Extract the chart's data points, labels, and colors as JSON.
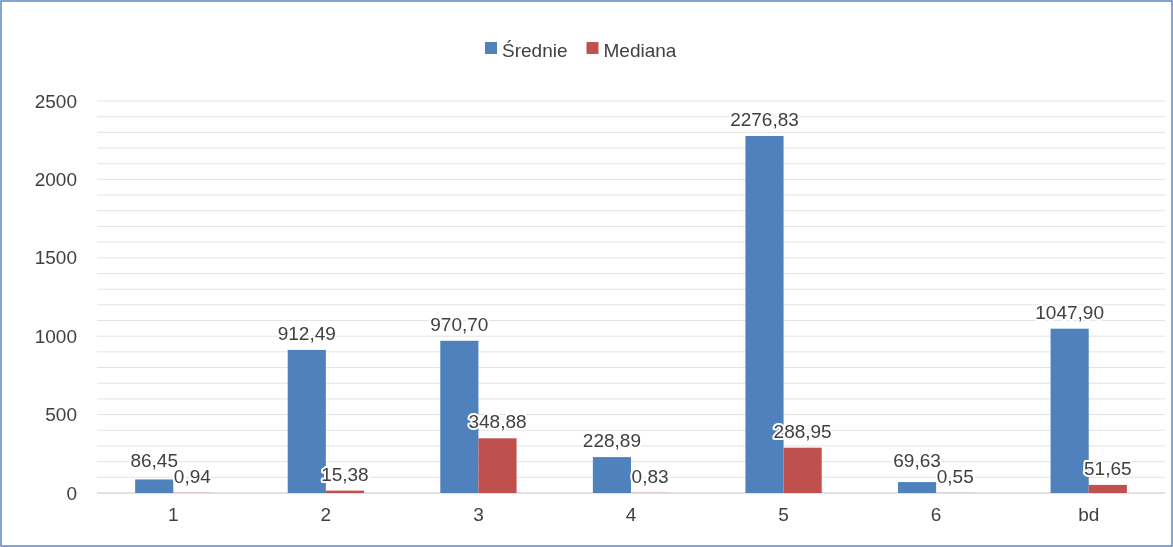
{
  "chart_data": {
    "type": "bar",
    "categories": [
      "1",
      "2",
      "3",
      "4",
      "5",
      "6",
      "bd"
    ],
    "series": [
      {
        "name": "Średnie",
        "color": "#4f81bd",
        "values": [
          86.45,
          912.49,
          970.7,
          228.89,
          2276.83,
          69.63,
          1047.9
        ],
        "value_labels": [
          "86,45",
          "912,49",
          "970,70",
          "228,89",
          "2276,83",
          "69,63",
          "1047,90"
        ]
      },
      {
        "name": "Mediana",
        "color": "#c0504d",
        "values": [
          0.94,
          15.38,
          348.88,
          0.83,
          288.95,
          0.55,
          51.65
        ],
        "value_labels": [
          "0,94",
          "15,38",
          "348,88",
          "0,83",
          "288,95",
          "0,55",
          "51,65"
        ]
      }
    ],
    "ylim": [
      0,
      2500
    ],
    "yticks": [
      0,
      {
        "value": 100,
        "label": null
      },
      {
        "value": 200,
        "label": null
      },
      {
        "value": 300,
        "label": null
      },
      {
        "value": 400,
        "label": null
      },
      500,
      {
        "value": 600,
        "label": null
      },
      {
        "value": 700,
        "label": null
      },
      {
        "value": 800,
        "label": null
      },
      {
        "value": 900,
        "label": null
      },
      1000,
      {
        "value": 1100,
        "label": null
      },
      {
        "value": 1200,
        "label": null
      },
      {
        "value": 1300,
        "label": null
      },
      {
        "value": 1400,
        "label": null
      },
      1500,
      {
        "value": 1600,
        "label": null
      },
      {
        "value": 1700,
        "label": null
      },
      {
        "value": 1800,
        "label": null
      },
      {
        "value": 1900,
        "label": null
      },
      2000,
      {
        "value": 2100,
        "label": null
      },
      {
        "value": 2200,
        "label": null
      },
      {
        "value": 2300,
        "label": null
      },
      {
        "value": 2400,
        "label": null
      },
      2500
    ],
    "grid": "y",
    "legend": "top"
  }
}
